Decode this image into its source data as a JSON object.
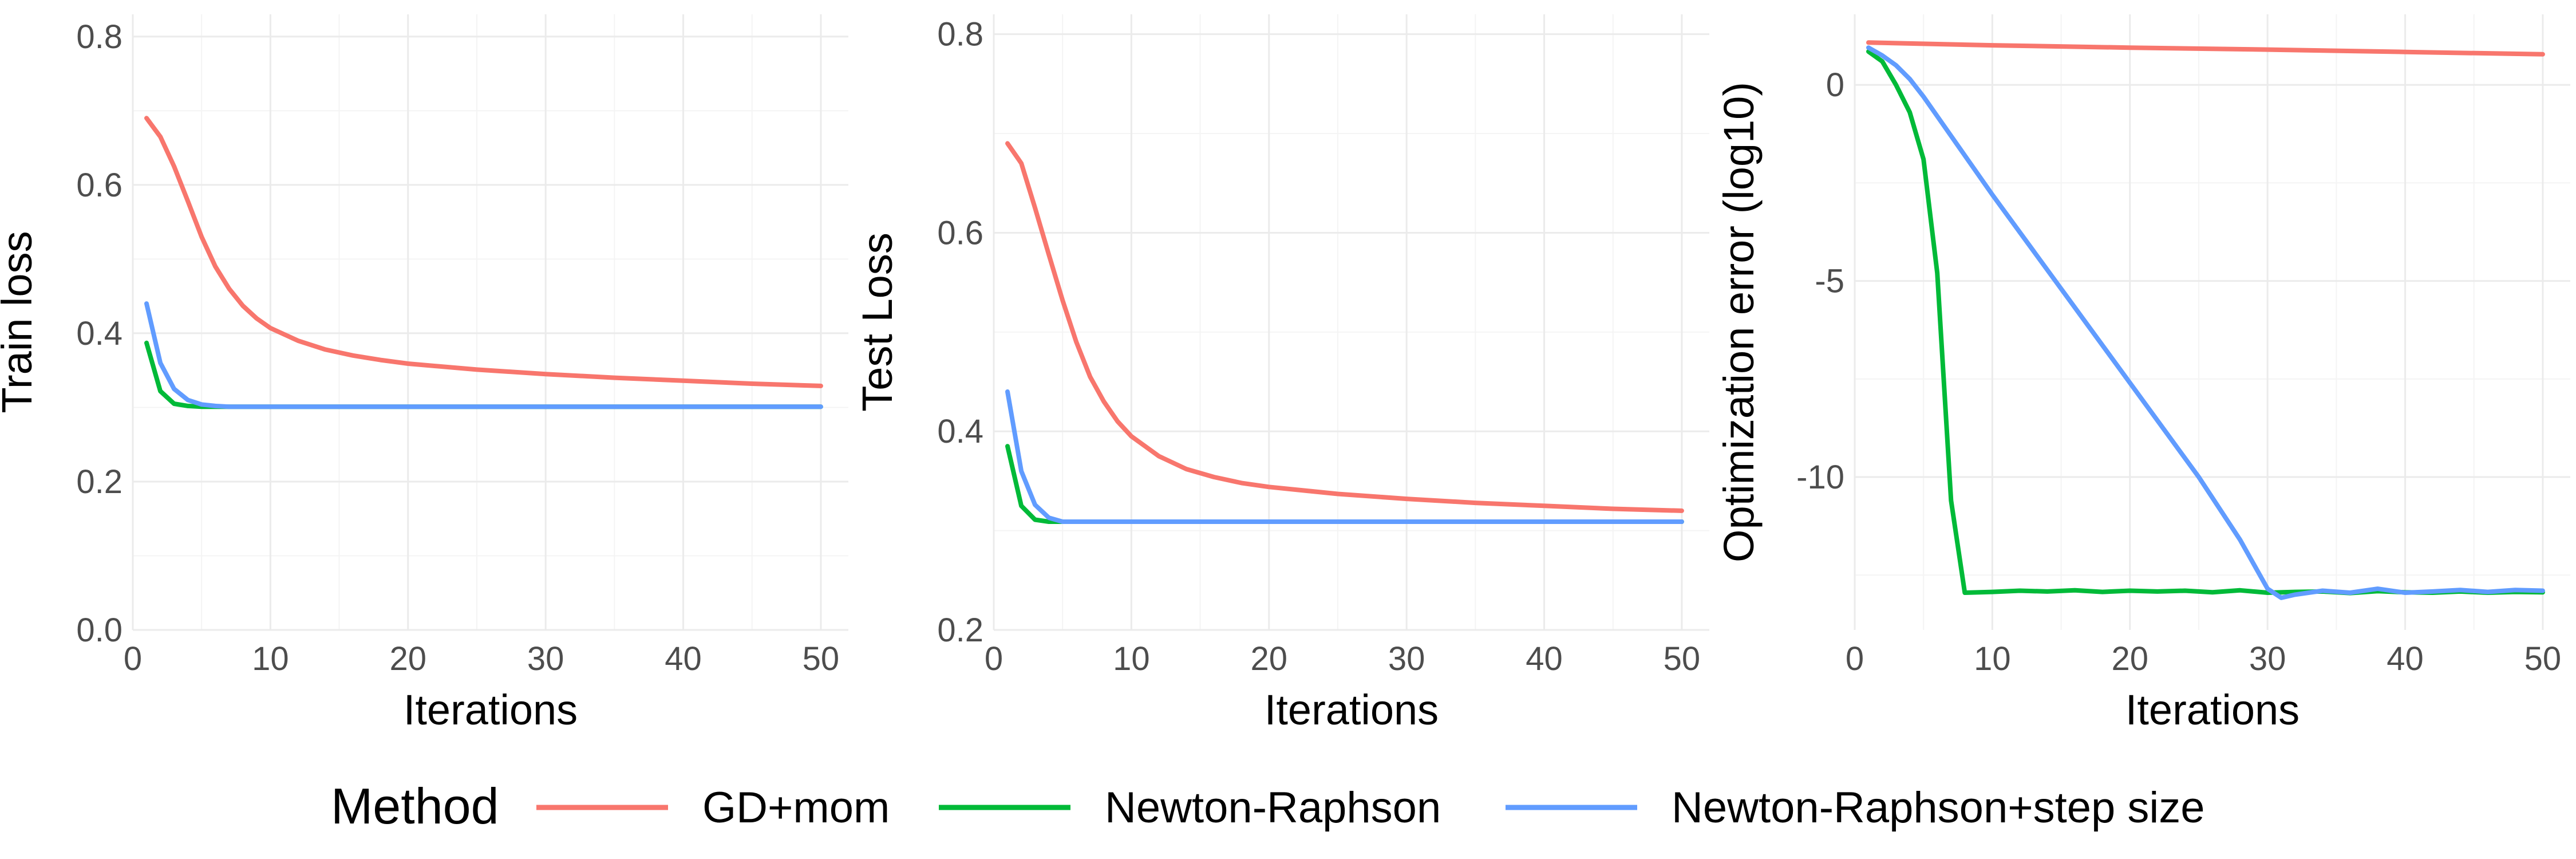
{
  "colors": {
    "gd_mom": "#F8766D",
    "newton_raphson": "#00BA38",
    "newton_raphson_step": "#619CFF"
  },
  "legend": {
    "title": "Method",
    "position": "bottom",
    "entries": [
      {
        "label": "GD+mom",
        "color": "#F8766D"
      },
      {
        "label": "Newton-Raphson",
        "color": "#00BA38"
      },
      {
        "label": "Newton-Raphson+step size",
        "color": "#619CFF"
      }
    ]
  },
  "chart_data": [
    {
      "type": "line",
      "xlabel": "Iterations",
      "ylabel": "Train loss",
      "xlim": [
        0,
        52
      ],
      "ylim": [
        0,
        0.83
      ],
      "xticks": [
        0,
        10,
        20,
        30,
        40,
        50
      ],
      "xtick_labels": [
        "0",
        "10",
        "20",
        "30",
        "40",
        "50"
      ],
      "yticks": [
        0,
        0.2,
        0.4,
        0.6,
        0.8
      ],
      "ytick_labels": [
        "0.0",
        "0.2",
        "0.4",
        "0.6",
        "0.8"
      ],
      "grid": true,
      "series": [
        {
          "name": "GD+mom",
          "color": "#F8766D",
          "points": [
            [
              1,
              0.69
            ],
            [
              2,
              0.665
            ],
            [
              3,
              0.625
            ],
            [
              4,
              0.578
            ],
            [
              5,
              0.53
            ],
            [
              6,
              0.49
            ],
            [
              7,
              0.46
            ],
            [
              8,
              0.437
            ],
            [
              9,
              0.42
            ],
            [
              10,
              0.407
            ],
            [
              12,
              0.39
            ],
            [
              14,
              0.378
            ],
            [
              16,
              0.37
            ],
            [
              18,
              0.364
            ],
            [
              20,
              0.359
            ],
            [
              25,
              0.351
            ],
            [
              30,
              0.345
            ],
            [
              35,
              0.34
            ],
            [
              40,
              0.336
            ],
            [
              45,
              0.332
            ],
            [
              50,
              0.329
            ]
          ]
        },
        {
          "name": "Newton-Raphson",
          "color": "#00BA38",
          "points": [
            [
              1,
              0.387
            ],
            [
              2,
              0.322
            ],
            [
              3,
              0.305
            ],
            [
              4,
              0.302
            ],
            [
              5,
              0.301
            ],
            [
              6,
              0.301
            ],
            [
              10,
              0.301
            ],
            [
              20,
              0.301
            ],
            [
              30,
              0.301
            ],
            [
              40,
              0.301
            ],
            [
              50,
              0.301
            ]
          ]
        },
        {
          "name": "Newton-Raphson+step size",
          "color": "#619CFF",
          "points": [
            [
              1,
              0.44
            ],
            [
              2,
              0.36
            ],
            [
              3,
              0.325
            ],
            [
              4,
              0.31
            ],
            [
              5,
              0.304
            ],
            [
              6,
              0.302
            ],
            [
              7,
              0.301
            ],
            [
              10,
              0.301
            ],
            [
              20,
              0.301
            ],
            [
              30,
              0.301
            ],
            [
              40,
              0.301
            ],
            [
              50,
              0.301
            ]
          ]
        }
      ]
    },
    {
      "type": "line",
      "xlabel": "Iterations",
      "ylabel": "Test Loss",
      "xlim": [
        0,
        52
      ],
      "ylim": [
        0.2,
        0.82
      ],
      "xticks": [
        0,
        10,
        20,
        30,
        40,
        50
      ],
      "xtick_labels": [
        "0",
        "10",
        "20",
        "30",
        "40",
        "50"
      ],
      "yticks": [
        0.2,
        0.4,
        0.6,
        0.8
      ],
      "ytick_labels": [
        "0.2",
        "0.4",
        "0.6",
        "0.8"
      ],
      "grid": true,
      "series": [
        {
          "name": "GD+mom",
          "color": "#F8766D",
          "points": [
            [
              1,
              0.69
            ],
            [
              2,
              0.67
            ],
            [
              3,
              0.625
            ],
            [
              4,
              0.578
            ],
            [
              5,
              0.532
            ],
            [
              6,
              0.49
            ],
            [
              7,
              0.455
            ],
            [
              8,
              0.43
            ],
            [
              9,
              0.41
            ],
            [
              10,
              0.395
            ],
            [
              12,
              0.375
            ],
            [
              14,
              0.362
            ],
            [
              16,
              0.354
            ],
            [
              18,
              0.348
            ],
            [
              20,
              0.344
            ],
            [
              25,
              0.337
            ],
            [
              30,
              0.332
            ],
            [
              35,
              0.328
            ],
            [
              40,
              0.325
            ],
            [
              45,
              0.322
            ],
            [
              50,
              0.32
            ]
          ]
        },
        {
          "name": "Newton-Raphson",
          "color": "#00BA38",
          "points": [
            [
              1,
              0.385
            ],
            [
              2,
              0.325
            ],
            [
              3,
              0.311
            ],
            [
              4,
              0.309
            ],
            [
              5,
              0.309
            ],
            [
              6,
              0.309
            ],
            [
              10,
              0.309
            ],
            [
              20,
              0.309
            ],
            [
              30,
              0.309
            ],
            [
              40,
              0.309
            ],
            [
              50,
              0.309
            ]
          ]
        },
        {
          "name": "Newton-Raphson+step size",
          "color": "#619CFF",
          "points": [
            [
              1,
              0.44
            ],
            [
              2,
              0.36
            ],
            [
              3,
              0.326
            ],
            [
              4,
              0.313
            ],
            [
              5,
              0.309
            ],
            [
              6,
              0.309
            ],
            [
              10,
              0.309
            ],
            [
              20,
              0.309
            ],
            [
              30,
              0.309
            ],
            [
              40,
              0.309
            ],
            [
              50,
              0.309
            ]
          ]
        }
      ]
    },
    {
      "type": "line",
      "xlabel": "Iterations",
      "ylabel": "Optimization error (log10)",
      "xlim": [
        0,
        52
      ],
      "ylim": [
        -13.9,
        1.8
      ],
      "xticks": [
        0,
        10,
        20,
        30,
        40,
        50
      ],
      "xtick_labels": [
        "0",
        "10",
        "20",
        "30",
        "40",
        "50"
      ],
      "yticks": [
        -10,
        -5,
        0
      ],
      "ytick_labels": [
        "-10",
        "-5",
        "0"
      ],
      "grid": true,
      "series": [
        {
          "name": "GD+mom",
          "color": "#F8766D",
          "points": [
            [
              1,
              1.08
            ],
            [
              10,
              1.01
            ],
            [
              20,
              0.95
            ],
            [
              30,
              0.9
            ],
            [
              40,
              0.84
            ],
            [
              50,
              0.78
            ]
          ]
        },
        {
          "name": "Newton-Raphson",
          "color": "#00BA38",
          "points": [
            [
              1,
              0.85
            ],
            [
              2,
              0.6
            ],
            [
              3,
              0.0
            ],
            [
              4,
              -0.7
            ],
            [
              5,
              -1.9
            ],
            [
              6,
              -4.8
            ],
            [
              7,
              -10.6
            ],
            [
              8,
              -12.95
            ],
            [
              10,
              -12.93
            ],
            [
              12,
              -12.9
            ],
            [
              14,
              -12.92
            ],
            [
              16,
              -12.89
            ],
            [
              18,
              -12.93
            ],
            [
              20,
              -12.9
            ],
            [
              22,
              -12.92
            ],
            [
              24,
              -12.9
            ],
            [
              26,
              -12.94
            ],
            [
              28,
              -12.89
            ],
            [
              30,
              -12.95
            ],
            [
              32,
              -12.93
            ],
            [
              34,
              -12.92
            ],
            [
              36,
              -12.96
            ],
            [
              38,
              -12.91
            ],
            [
              40,
              -12.94
            ],
            [
              42,
              -12.95
            ],
            [
              44,
              -12.92
            ],
            [
              46,
              -12.95
            ],
            [
              48,
              -12.93
            ],
            [
              50,
              -12.94
            ]
          ]
        },
        {
          "name": "Newton-Raphson+step size",
          "color": "#619CFF",
          "points": [
            [
              1,
              0.95
            ],
            [
              2,
              0.75
            ],
            [
              3,
              0.5
            ],
            [
              4,
              0.15
            ],
            [
              5,
              -0.3
            ],
            [
              6,
              -0.8
            ],
            [
              10,
              -2.8
            ],
            [
              15,
              -5.2
            ],
            [
              20,
              -7.6
            ],
            [
              25,
              -10.0
            ],
            [
              28,
              -11.6
            ],
            [
              30,
              -12.85
            ],
            [
              31,
              -13.08
            ],
            [
              32,
              -13.0
            ],
            [
              34,
              -12.9
            ],
            [
              36,
              -12.95
            ],
            [
              38,
              -12.85
            ],
            [
              40,
              -12.95
            ],
            [
              42,
              -12.92
            ],
            [
              44,
              -12.88
            ],
            [
              46,
              -12.93
            ],
            [
              48,
              -12.88
            ],
            [
              50,
              -12.9
            ]
          ]
        }
      ]
    }
  ]
}
